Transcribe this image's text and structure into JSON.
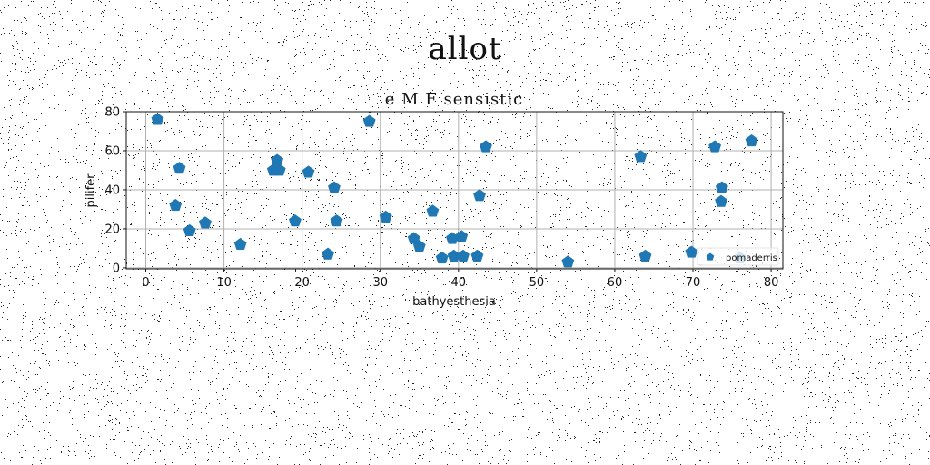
{
  "figure_title": "allot",
  "chart_data": {
    "type": "scatter",
    "title": "e M F sensistic",
    "xlabel": "bathyesthesia",
    "ylabel": "pilifer",
    "xlim": [
      -2.5,
      81.5
    ],
    "ylim": [
      -0.5,
      80
    ],
    "xticks": [
      0,
      10,
      20,
      30,
      40,
      50,
      60,
      70,
      80
    ],
    "yticks": [
      0,
      20,
      40,
      60,
      80
    ],
    "grid": true,
    "legend_placement": "lower-right",
    "marker": "pentagon",
    "series": [
      {
        "name": "pomaderris",
        "color": "#1f77b4",
        "points": [
          {
            "x": 1.5,
            "y": 76
          },
          {
            "x": 3.8,
            "y": 32
          },
          {
            "x": 4.3,
            "y": 51
          },
          {
            "x": 5.6,
            "y": 19
          },
          {
            "x": 7.6,
            "y": 23
          },
          {
            "x": 12.1,
            "y": 12
          },
          {
            "x": 16.3,
            "y": 50
          },
          {
            "x": 16.8,
            "y": 55
          },
          {
            "x": 17.1,
            "y": 50
          },
          {
            "x": 19.1,
            "y": 24
          },
          {
            "x": 20.8,
            "y": 49
          },
          {
            "x": 23.3,
            "y": 7
          },
          {
            "x": 24.1,
            "y": 41
          },
          {
            "x": 24.4,
            "y": 24
          },
          {
            "x": 28.6,
            "y": 75
          },
          {
            "x": 30.7,
            "y": 26
          },
          {
            "x": 34.3,
            "y": 15
          },
          {
            "x": 35.0,
            "y": 11
          },
          {
            "x": 36.7,
            "y": 29
          },
          {
            "x": 37.9,
            "y": 5
          },
          {
            "x": 39.2,
            "y": 15
          },
          {
            "x": 39.4,
            "y": 6
          },
          {
            "x": 40.4,
            "y": 16
          },
          {
            "x": 40.6,
            "y": 6
          },
          {
            "x": 42.4,
            "y": 6
          },
          {
            "x": 42.7,
            "y": 37
          },
          {
            "x": 43.5,
            "y": 62
          },
          {
            "x": 54.0,
            "y": 3
          },
          {
            "x": 63.3,
            "y": 57
          },
          {
            "x": 63.9,
            "y": 6
          },
          {
            "x": 69.8,
            "y": 8
          },
          {
            "x": 72.8,
            "y": 62
          },
          {
            "x": 73.6,
            "y": 34
          },
          {
            "x": 73.7,
            "y": 41
          },
          {
            "x": 76.0,
            "y": 5
          },
          {
            "x": 77.5,
            "y": 65
          }
        ]
      }
    ]
  }
}
